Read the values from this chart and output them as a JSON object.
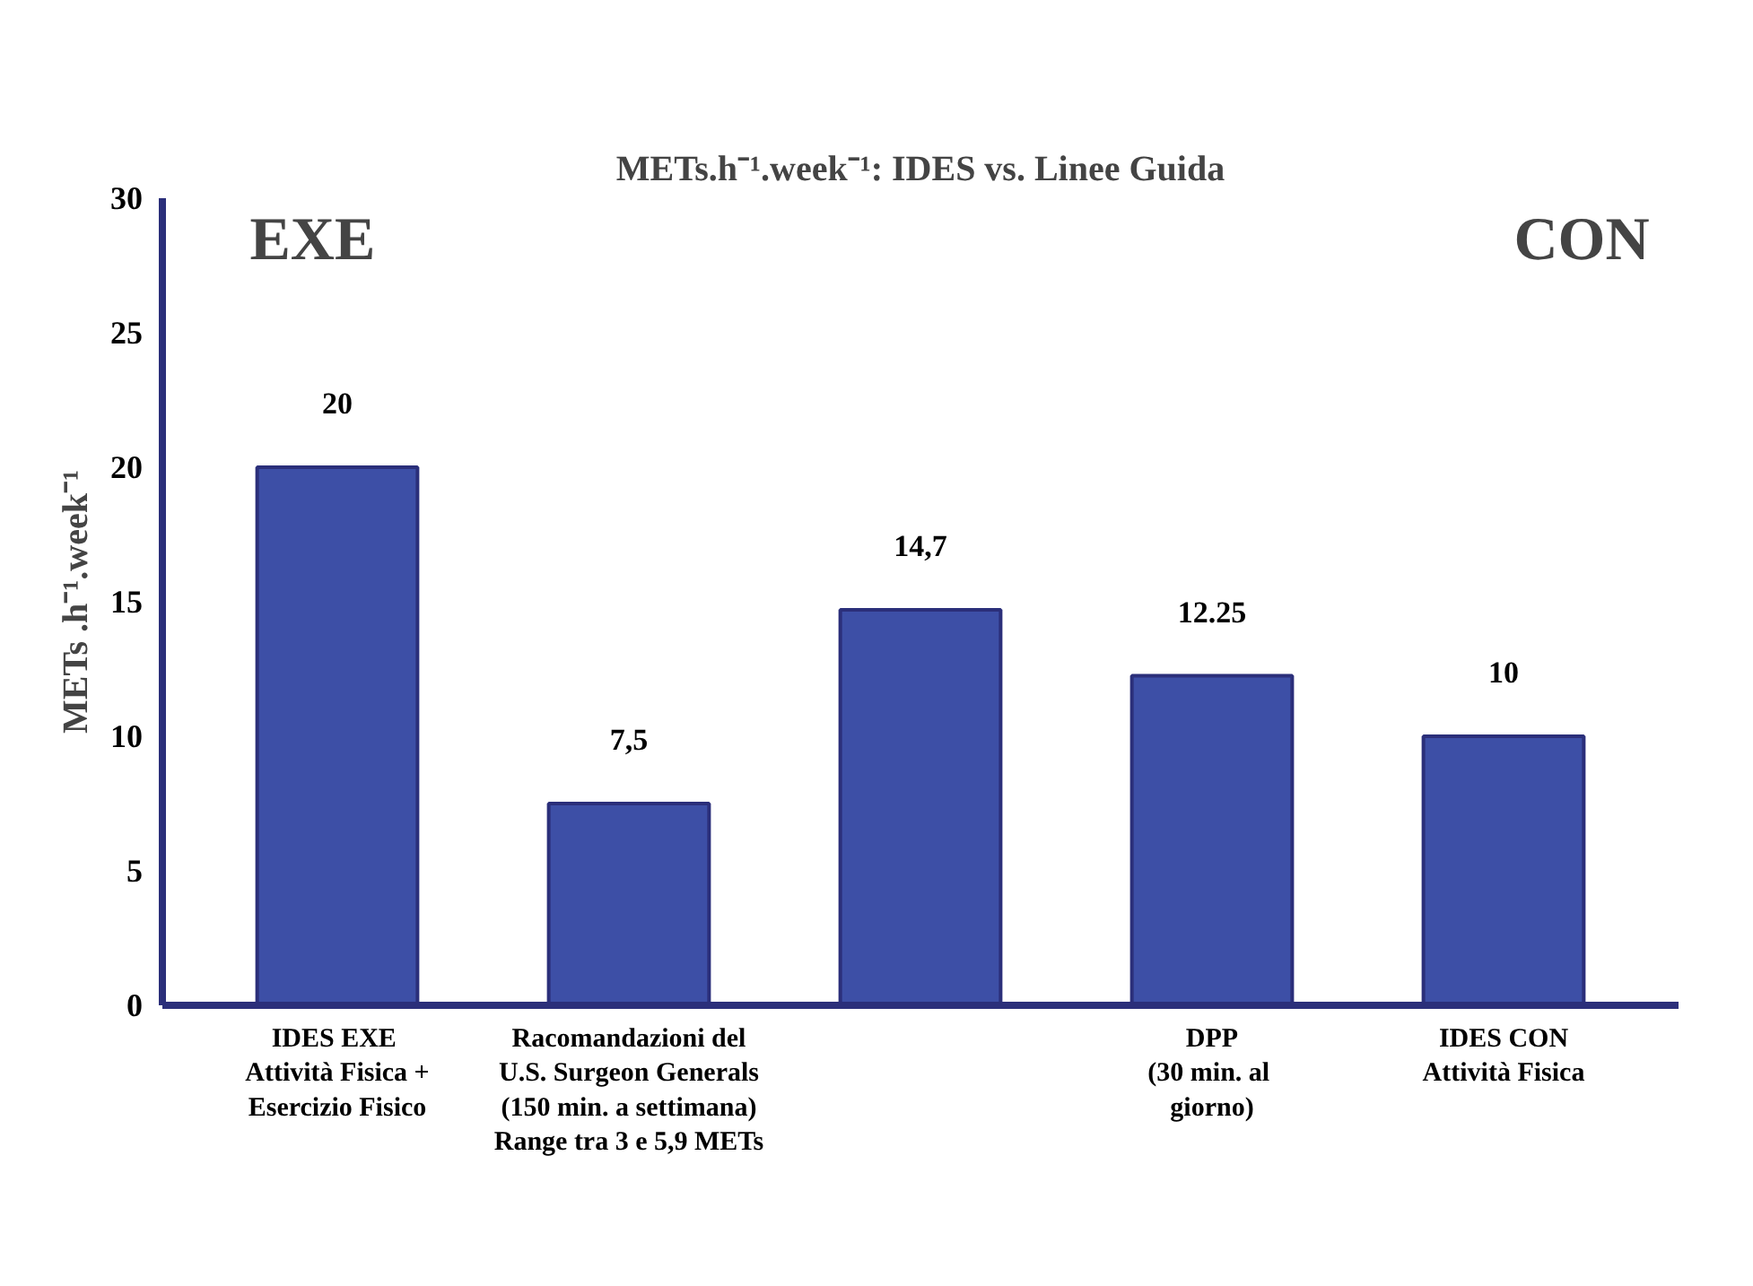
{
  "chart_data": {
    "type": "bar",
    "title": "METs.h⁻¹.week⁻¹: IDES vs. Linee Guida",
    "ylabel": "METs .h⁻¹.week⁻¹",
    "categories": [
      "IDES  EXE\nAttività Fisica +\nEsercizio Fisico",
      "Racomandazioni del\nU.S. Surgeon Generals\n(150 min. a settimana)\nRange tra 3 e 5,9 METs",
      null,
      "DPP\n(30  min. al\ngiorno)",
      "IDES CON\nAttività Fisica"
    ],
    "values": [
      20,
      7.5,
      14.7,
      12.25,
      10
    ],
    "value_labels": [
      "20",
      "7,5",
      "14,7",
      "12.25",
      "10"
    ],
    "color": "#3d4fa6",
    "ylim": [
      0,
      30
    ],
    "yticks": [
      0,
      5,
      10,
      15,
      20,
      25,
      30
    ],
    "grid": false,
    "annotations": [
      "EXE",
      "CON"
    ]
  }
}
